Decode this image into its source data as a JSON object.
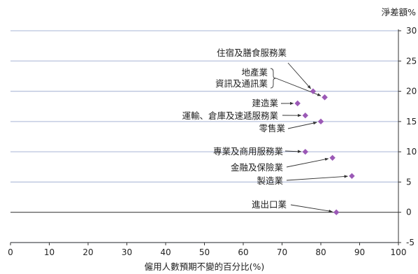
{
  "chart_data": {
    "type": "scatter",
    "title": "",
    "xlabel": "僱用人數預期不變的百分比(%)",
    "ylabel": "淨差額%",
    "xlim": [
      0,
      100
    ],
    "ylim": [
      -5,
      30
    ],
    "xticks": [
      0,
      10,
      20,
      30,
      40,
      50,
      60,
      70,
      80,
      90,
      100
    ],
    "yticks": [
      -5,
      0,
      5,
      10,
      15,
      20,
      25,
      30
    ],
    "grid": "horizontal",
    "marker_color": "#9b59b6",
    "points": [
      {
        "label": "住宿及膳食服務業",
        "x": 78,
        "y": 20
      },
      {
        "label": "地產業",
        "x": 81,
        "y": 19
      },
      {
        "label": "資訊及通訊業",
        "x": 81,
        "y": 19
      },
      {
        "label": "建造業",
        "x": 74,
        "y": 18
      },
      {
        "label": "運輸、倉庫及速遞服務業",
        "x": 76,
        "y": 16
      },
      {
        "label": "零售業",
        "x": 80,
        "y": 15
      },
      {
        "label": "專業及商用服務業",
        "x": 76,
        "y": 10
      },
      {
        "label": "金融及保險業",
        "x": 83,
        "y": 9
      },
      {
        "label": "製造業",
        "x": 88,
        "y": 6
      },
      {
        "label": "進出口業",
        "x": 84,
        "y": 0
      }
    ]
  }
}
